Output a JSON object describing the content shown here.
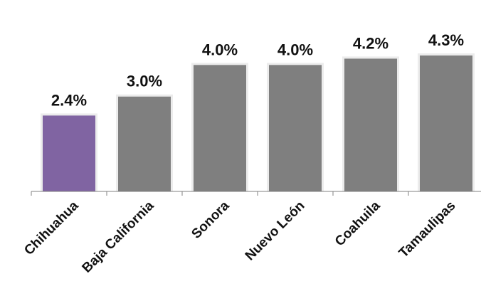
{
  "chart_data": {
    "type": "bar",
    "categories": [
      "Chihuahua",
      "Baja California",
      "Sonora",
      "Nuevo León",
      "Coahuila",
      "Tamaulipas"
    ],
    "values": [
      2.4,
      3.0,
      4.0,
      4.0,
      4.2,
      4.3
    ],
    "value_labels": [
      "2.4%",
      "3.0%",
      "4.0%",
      "4.0%",
      "4.2%",
      "4.3%"
    ],
    "highlight_index": 0,
    "colors": {
      "highlight": "#8064a2",
      "default": "#7f7f7f",
      "axis": "#808080"
    },
    "ylim": [
      0,
      4.3
    ],
    "grid": false,
    "legend": "none"
  }
}
